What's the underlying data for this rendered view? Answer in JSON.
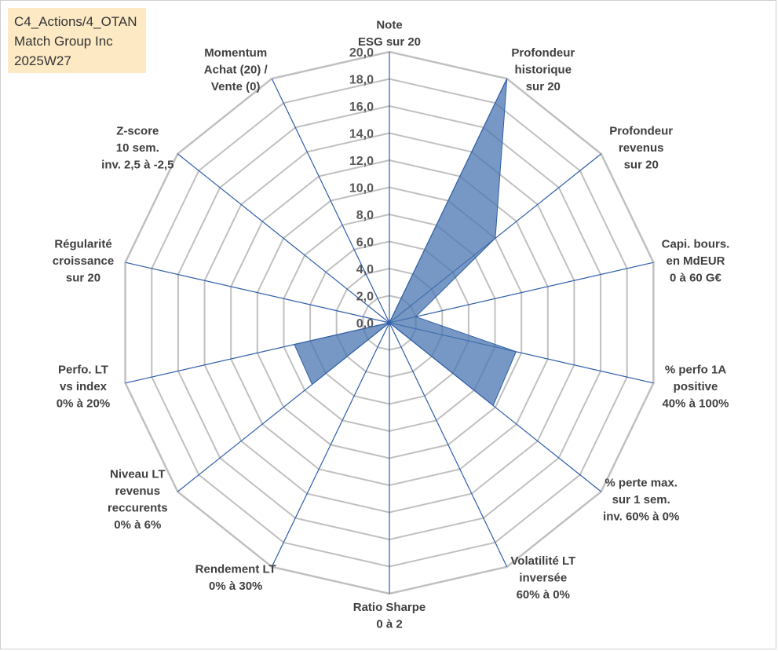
{
  "header": {
    "line1": "C4_Actions/4_OTAN",
    "line2": "Match Group Inc",
    "line3": "2025W27"
  },
  "colors": {
    "grid": "#c0c0c0",
    "spoke": "#2f5ea8",
    "fill": "#4a76b0",
    "label": "#404040"
  },
  "chart_data": {
    "type": "radar",
    "title": "",
    "rmin": 0,
    "rmax": 20,
    "tick_step": 2,
    "tick_labels": [
      "0,0",
      "2,0",
      "4,0",
      "6,0",
      "8,0",
      "10,0",
      "12,0",
      "14,0",
      "16,0",
      "18,0",
      "20,0"
    ],
    "axes": [
      {
        "lines": [
          "Note",
          "ESG sur 20"
        ]
      },
      {
        "lines": [
          "Profondeur",
          "historique",
          "sur 20"
        ]
      },
      {
        "lines": [
          "Profondeur",
          "revenus",
          "sur 20"
        ]
      },
      {
        "lines": [
          "Capi. bours.",
          "en MdEUR",
          "0 à 60 G€"
        ]
      },
      {
        "lines": [
          "% perfo 1A",
          "positive",
          "40% à 100%"
        ]
      },
      {
        "lines": [
          "% perte max.",
          "sur 1 sem.",
          "inv. 60% à 0%"
        ]
      },
      {
        "lines": [
          "Volatilité LT",
          "inversée",
          "60% à 0%"
        ]
      },
      {
        "lines": [
          "Ratio Sharpe",
          "0 à 2"
        ]
      },
      {
        "lines": [
          "Rendement LT",
          "0% à 30%"
        ]
      },
      {
        "lines": [
          "Niveau LT",
          "revenus",
          "reccurents",
          "0% à 6%"
        ]
      },
      {
        "lines": [
          "Perfo. LT",
          "vs index",
          "0% à 20%"
        ]
      },
      {
        "lines": [
          "Régularité",
          "croissance",
          "sur 20"
        ]
      },
      {
        "lines": [
          "Z-score",
          "10 sem.",
          "inv. 2,5 à -2,5"
        ]
      },
      {
        "lines": [
          "Momentum",
          "Achat (20) /",
          "Vente (0)"
        ]
      }
    ],
    "series": [
      {
        "values": [
          0,
          20,
          10,
          2,
          9.6,
          9.8,
          0,
          4.6,
          0,
          7.3,
          7.2,
          0,
          0,
          0
        ]
      }
    ]
  }
}
